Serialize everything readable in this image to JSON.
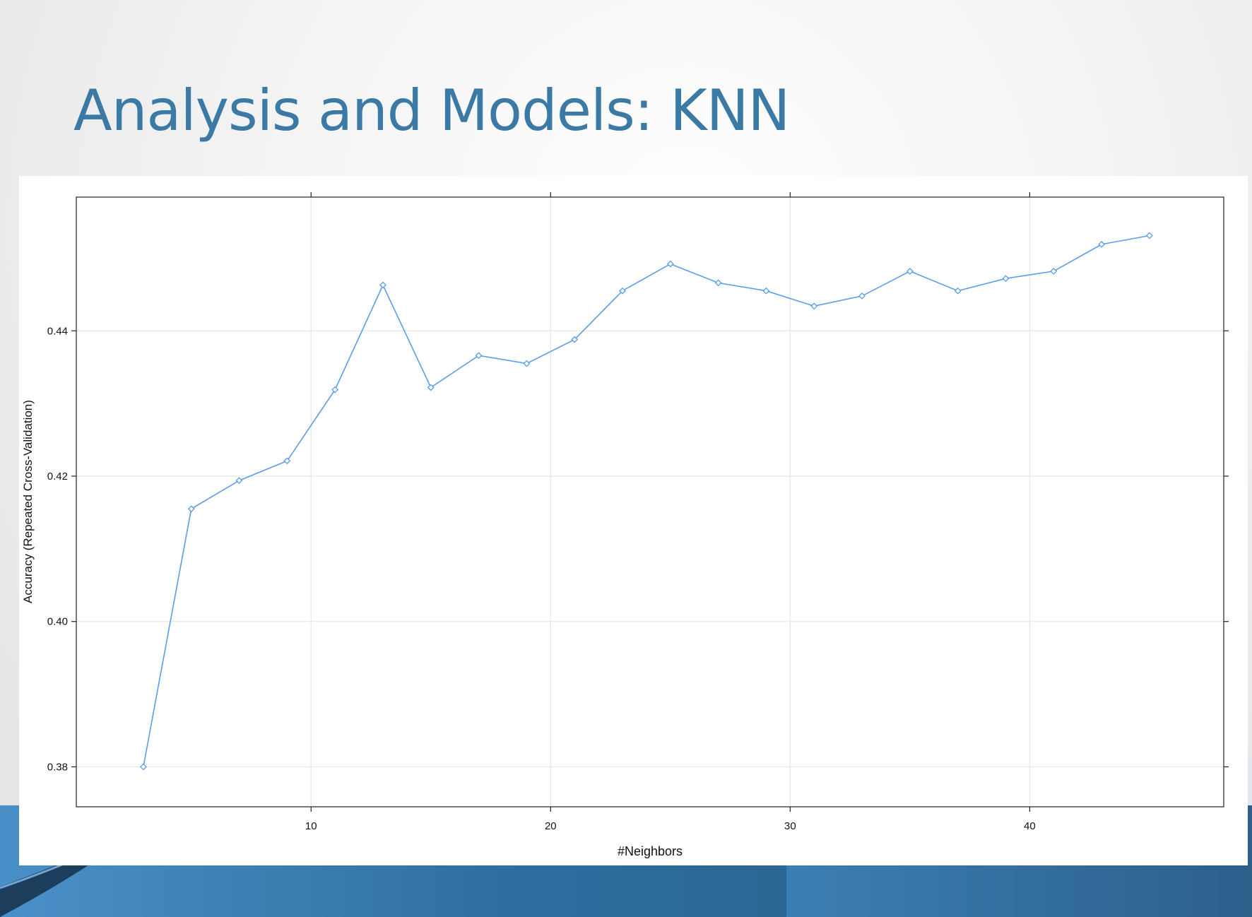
{
  "slide": {
    "title": "Analysis and Models: KNN"
  },
  "colors": {
    "title": "#3a7aa4",
    "series": "#5b9de8",
    "grid": "#e6e6e6",
    "frame": "#222222"
  },
  "chart_data": {
    "type": "line",
    "xlabel": "#Neighbors",
    "ylabel": "Accuracy (Repeated Cross-Validation)",
    "xlim": [
      0.2,
      48.1
    ],
    "ylim": [
      0.3745,
      0.4584
    ],
    "x_ticks": [
      10,
      20,
      30,
      40
    ],
    "x_tick_labels": [
      "10",
      "20",
      "30",
      "40"
    ],
    "y_ticks": [
      0.38,
      0.4,
      0.42,
      0.44
    ],
    "y_tick_labels": [
      "0.38",
      "0.40",
      "0.42",
      "0.44"
    ],
    "grid": true,
    "marker": "diamond",
    "series": [
      {
        "x": [
          3,
          5,
          7,
          9,
          11,
          13,
          15,
          17,
          19,
          21,
          23,
          25,
          27,
          29,
          31,
          33,
          35,
          37,
          39,
          41,
          43,
          45
        ],
        "y": [
          0.38,
          0.4155,
          0.4194,
          0.4221,
          0.4319,
          0.4463,
          0.4322,
          0.4366,
          0.4355,
          0.4388,
          0.4455,
          0.4492,
          0.4466,
          0.4455,
          0.4434,
          0.4448,
          0.4482,
          0.4455,
          0.4472,
          0.4482,
          0.4519,
          0.4531
        ]
      }
    ]
  }
}
